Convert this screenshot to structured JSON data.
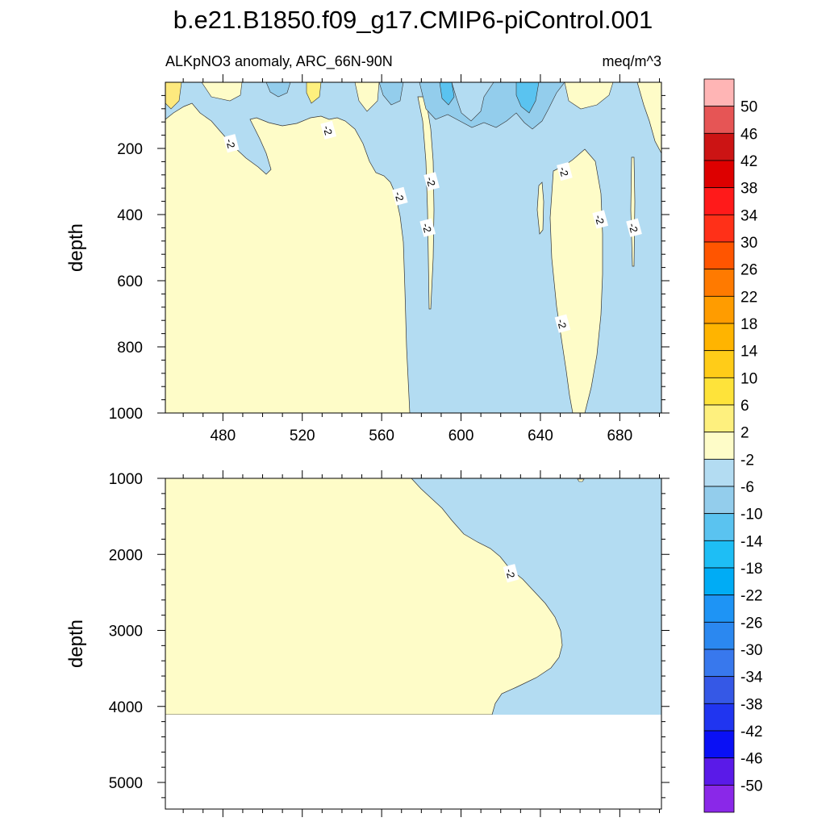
{
  "title": "b.e21.B1850.f09_g17.CMIP6-piControl.001",
  "subtitle_left": "ALKpNO3 anomaly, ARC_66N-90N",
  "subtitle_right": "meq/m^3",
  "colors": {
    "neg_fill": "#b3dcf2",
    "pos_fill": "#fefcc8",
    "neg_dark": "#93cdec",
    "neg_darker": "#5ab8e8",
    "pos_dark": "#fde97e"
  },
  "chart_data": [
    {
      "type": "heatmap",
      "panel": "upper",
      "xlabel": "",
      "ylabel": "depth",
      "xlim": [
        451,
        701
      ],
      "ylim": [
        1000,
        0
      ],
      "x_ticks": [
        "480",
        "520",
        "560",
        "600",
        "640",
        "680"
      ],
      "x_tick_values": [
        480,
        520,
        560,
        600,
        640,
        680
      ],
      "y_ticks": [
        "200",
        "400",
        "600",
        "800",
        "1000"
      ],
      "y_tick_values": [
        200,
        400,
        600,
        800,
        1000
      ],
      "contour_labels": [
        {
          "text": "-2",
          "x": 484,
          "y": 185
        },
        {
          "text": "-2",
          "x": 533,
          "y": 145
        },
        {
          "text": "-2",
          "x": 569,
          "y": 345
        },
        {
          "text": "-2",
          "x": 585,
          "y": 300
        },
        {
          "text": "-2",
          "x": 583,
          "y": 440
        },
        {
          "text": "-2",
          "x": 652,
          "y": 270
        },
        {
          "text": "-2",
          "x": 670,
          "y": 415
        },
        {
          "text": "-2",
          "x": 687,
          "y": 440
        },
        {
          "text": "-2",
          "x": 651,
          "y": 730
        }
      ]
    },
    {
      "type": "heatmap",
      "panel": "lower",
      "xlabel": "",
      "ylabel": "depth",
      "xlim": [
        451,
        701
      ],
      "ylim": [
        5350,
        1000
      ],
      "x_tick_values": [
        480,
        520,
        560,
        600,
        640,
        680
      ],
      "y_ticks": [
        "1000",
        "2000",
        "3000",
        "4000",
        "5000"
      ],
      "y_tick_values": [
        1000,
        2000,
        3000,
        4000,
        5000
      ],
      "bottom_depth": 4120,
      "contour_labels": [
        {
          "text": "-2",
          "x": 625,
          "y": 2250
        }
      ]
    }
  ],
  "colorbar": {
    "labels": [
      "50",
      "46",
      "42",
      "38",
      "34",
      "30",
      "26",
      "22",
      "18",
      "14",
      "10",
      "6",
      "2",
      "-2",
      "-6",
      "-10",
      "-14",
      "-18",
      "-22",
      "-26",
      "-30",
      "-34",
      "-38",
      "-42",
      "-46",
      "-50"
    ],
    "colors": [
      "#ffb5b5",
      "#e65555",
      "#cc1414",
      "#dd0000",
      "#ff1a1a",
      "#ff3018",
      "#ff5500",
      "#ff7a00",
      "#ff9c00",
      "#ffb400",
      "#ffcc18",
      "#fee33a",
      "#fef07e",
      "#fefcc8",
      "#b3dcf2",
      "#93cdec",
      "#5ac3f0",
      "#1ebef5",
      "#00acf5",
      "#1e94f5",
      "#2b88f0",
      "#3878ed",
      "#3558e6",
      "#2035f0",
      "#0a10f5",
      "#5a1ae8",
      "#8a28e8"
    ]
  }
}
